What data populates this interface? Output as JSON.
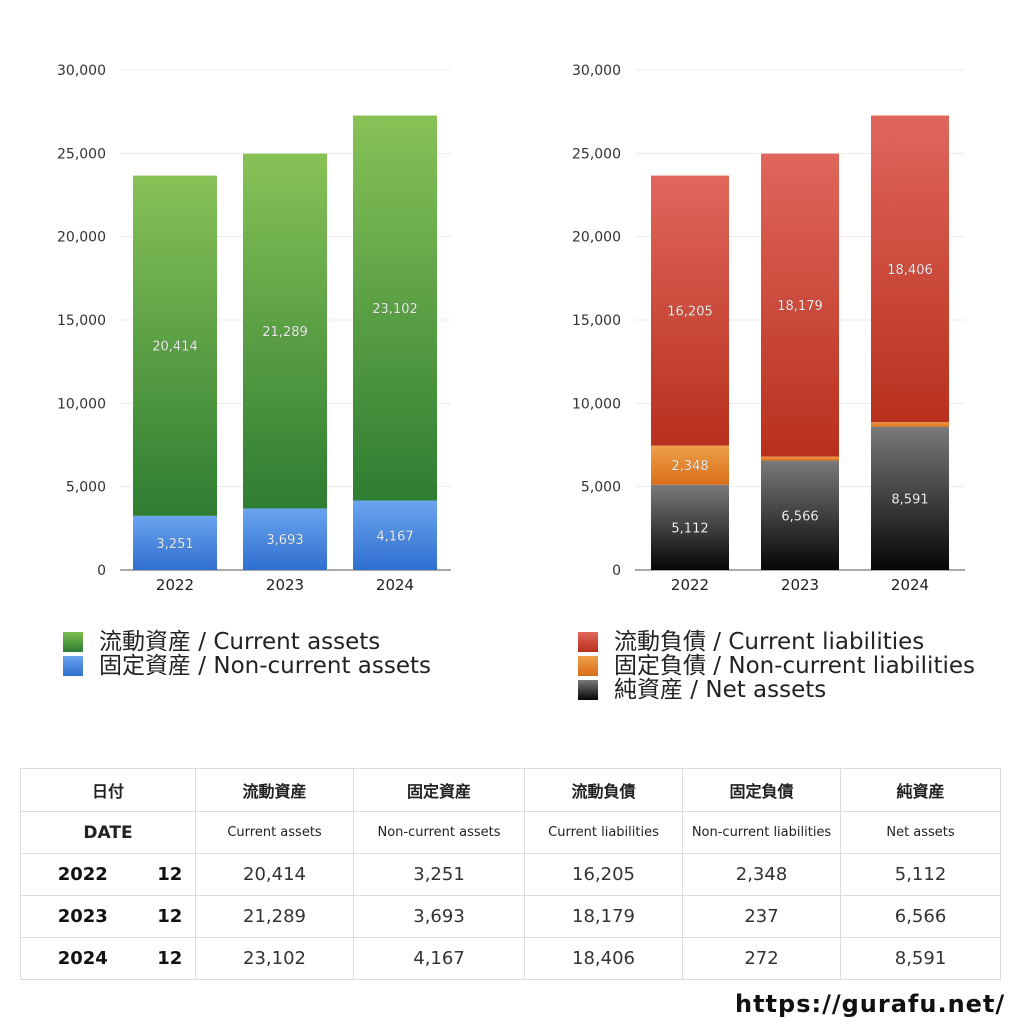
{
  "chart_data": [
    {
      "type": "bar",
      "stacked": true,
      "categories": [
        "2022",
        "2023",
        "2024"
      ],
      "ylim": [
        0,
        30000
      ],
      "yticks": [
        0,
        5000,
        10000,
        15000,
        20000,
        25000,
        30000
      ],
      "ytick_labels": [
        "0",
        "5,000",
        "10,000",
        "15,000",
        "20,000",
        "25,000",
        "30,000"
      ],
      "grid": true,
      "series": [
        {
          "name": "固定資産 / Non-current assets",
          "values": [
            3251,
            3693,
            4167
          ],
          "labels": [
            "3,251",
            "3,693",
            "4,167"
          ],
          "color_top": "#6aa5ee",
          "color_bottom": "#2f6fd0"
        },
        {
          "name": "流動資産 / Current assets",
          "values": [
            20414,
            21289,
            23102
          ],
          "labels": [
            "20,414",
            "21,289",
            "23,102"
          ],
          "color_top": "#88c257",
          "color_bottom": "#2e7d32"
        }
      ],
      "legend_order": [
        1,
        0
      ]
    },
    {
      "type": "bar",
      "stacked": true,
      "categories": [
        "2022",
        "2023",
        "2024"
      ],
      "ylim": [
        0,
        30000
      ],
      "yticks": [
        0,
        5000,
        10000,
        15000,
        20000,
        25000,
        30000
      ],
      "ytick_labels": [
        "0",
        "5,000",
        "10,000",
        "15,000",
        "20,000",
        "25,000",
        "30,000"
      ],
      "grid": true,
      "series": [
        {
          "name": "純資産 / Net assets",
          "values": [
            5112,
            6566,
            8591
          ],
          "labels": [
            "5,112",
            "6,566",
            "8,591"
          ],
          "color_top": "#7a7a7a",
          "color_bottom": "#050505"
        },
        {
          "name": "固定負債 / Non-current liabilities",
          "values": [
            2348,
            237,
            272
          ],
          "labels": [
            "2,348",
            "237",
            "272"
          ],
          "color_top": "#eea04a",
          "color_bottom": "#d96d18"
        },
        {
          "name": "流動負債 / Current liabilities",
          "values": [
            16205,
            18179,
            18406
          ],
          "labels": [
            "16,205",
            "18,179",
            "18,406"
          ],
          "color_top": "#e0665c",
          "color_bottom": "#b8301d"
        }
      ],
      "legend_order": [
        2,
        1,
        0
      ]
    }
  ],
  "legend_swatches": {
    "current_assets": "#4ea14a",
    "non_current_assets": "#3e82e0",
    "current_liabilities": "#d3453a",
    "non_current_liabilities": "#e8872e",
    "net_assets": "#2a2a2a"
  },
  "table": {
    "header_ja": {
      "date": "日付",
      "c1": "流動資産",
      "c2": "固定資産",
      "c3": "流動負債",
      "c4": "固定負債",
      "c5": "純資産"
    },
    "header_en": {
      "date": "DATE",
      "c1": "Current assets",
      "c2": "Non-current assets",
      "c3": "Current liabilities",
      "c4": "Non-current liabilities",
      "c5": "Net assets"
    },
    "rows": [
      {
        "year": "2022",
        "month": "12",
        "c1": "20,414",
        "c2": "3,251",
        "c3": "16,205",
        "c4": "2,348",
        "c5": "5,112"
      },
      {
        "year": "2023",
        "month": "12",
        "c1": "21,289",
        "c2": "3,693",
        "c3": "18,179",
        "c4": "237",
        "c5": "6,566"
      },
      {
        "year": "2024",
        "month": "12",
        "c1": "23,102",
        "c2": "4,167",
        "c3": "18,406",
        "c4": "272",
        "c5": "8,591"
      }
    ]
  },
  "site_url": "https://gurafu.net/"
}
